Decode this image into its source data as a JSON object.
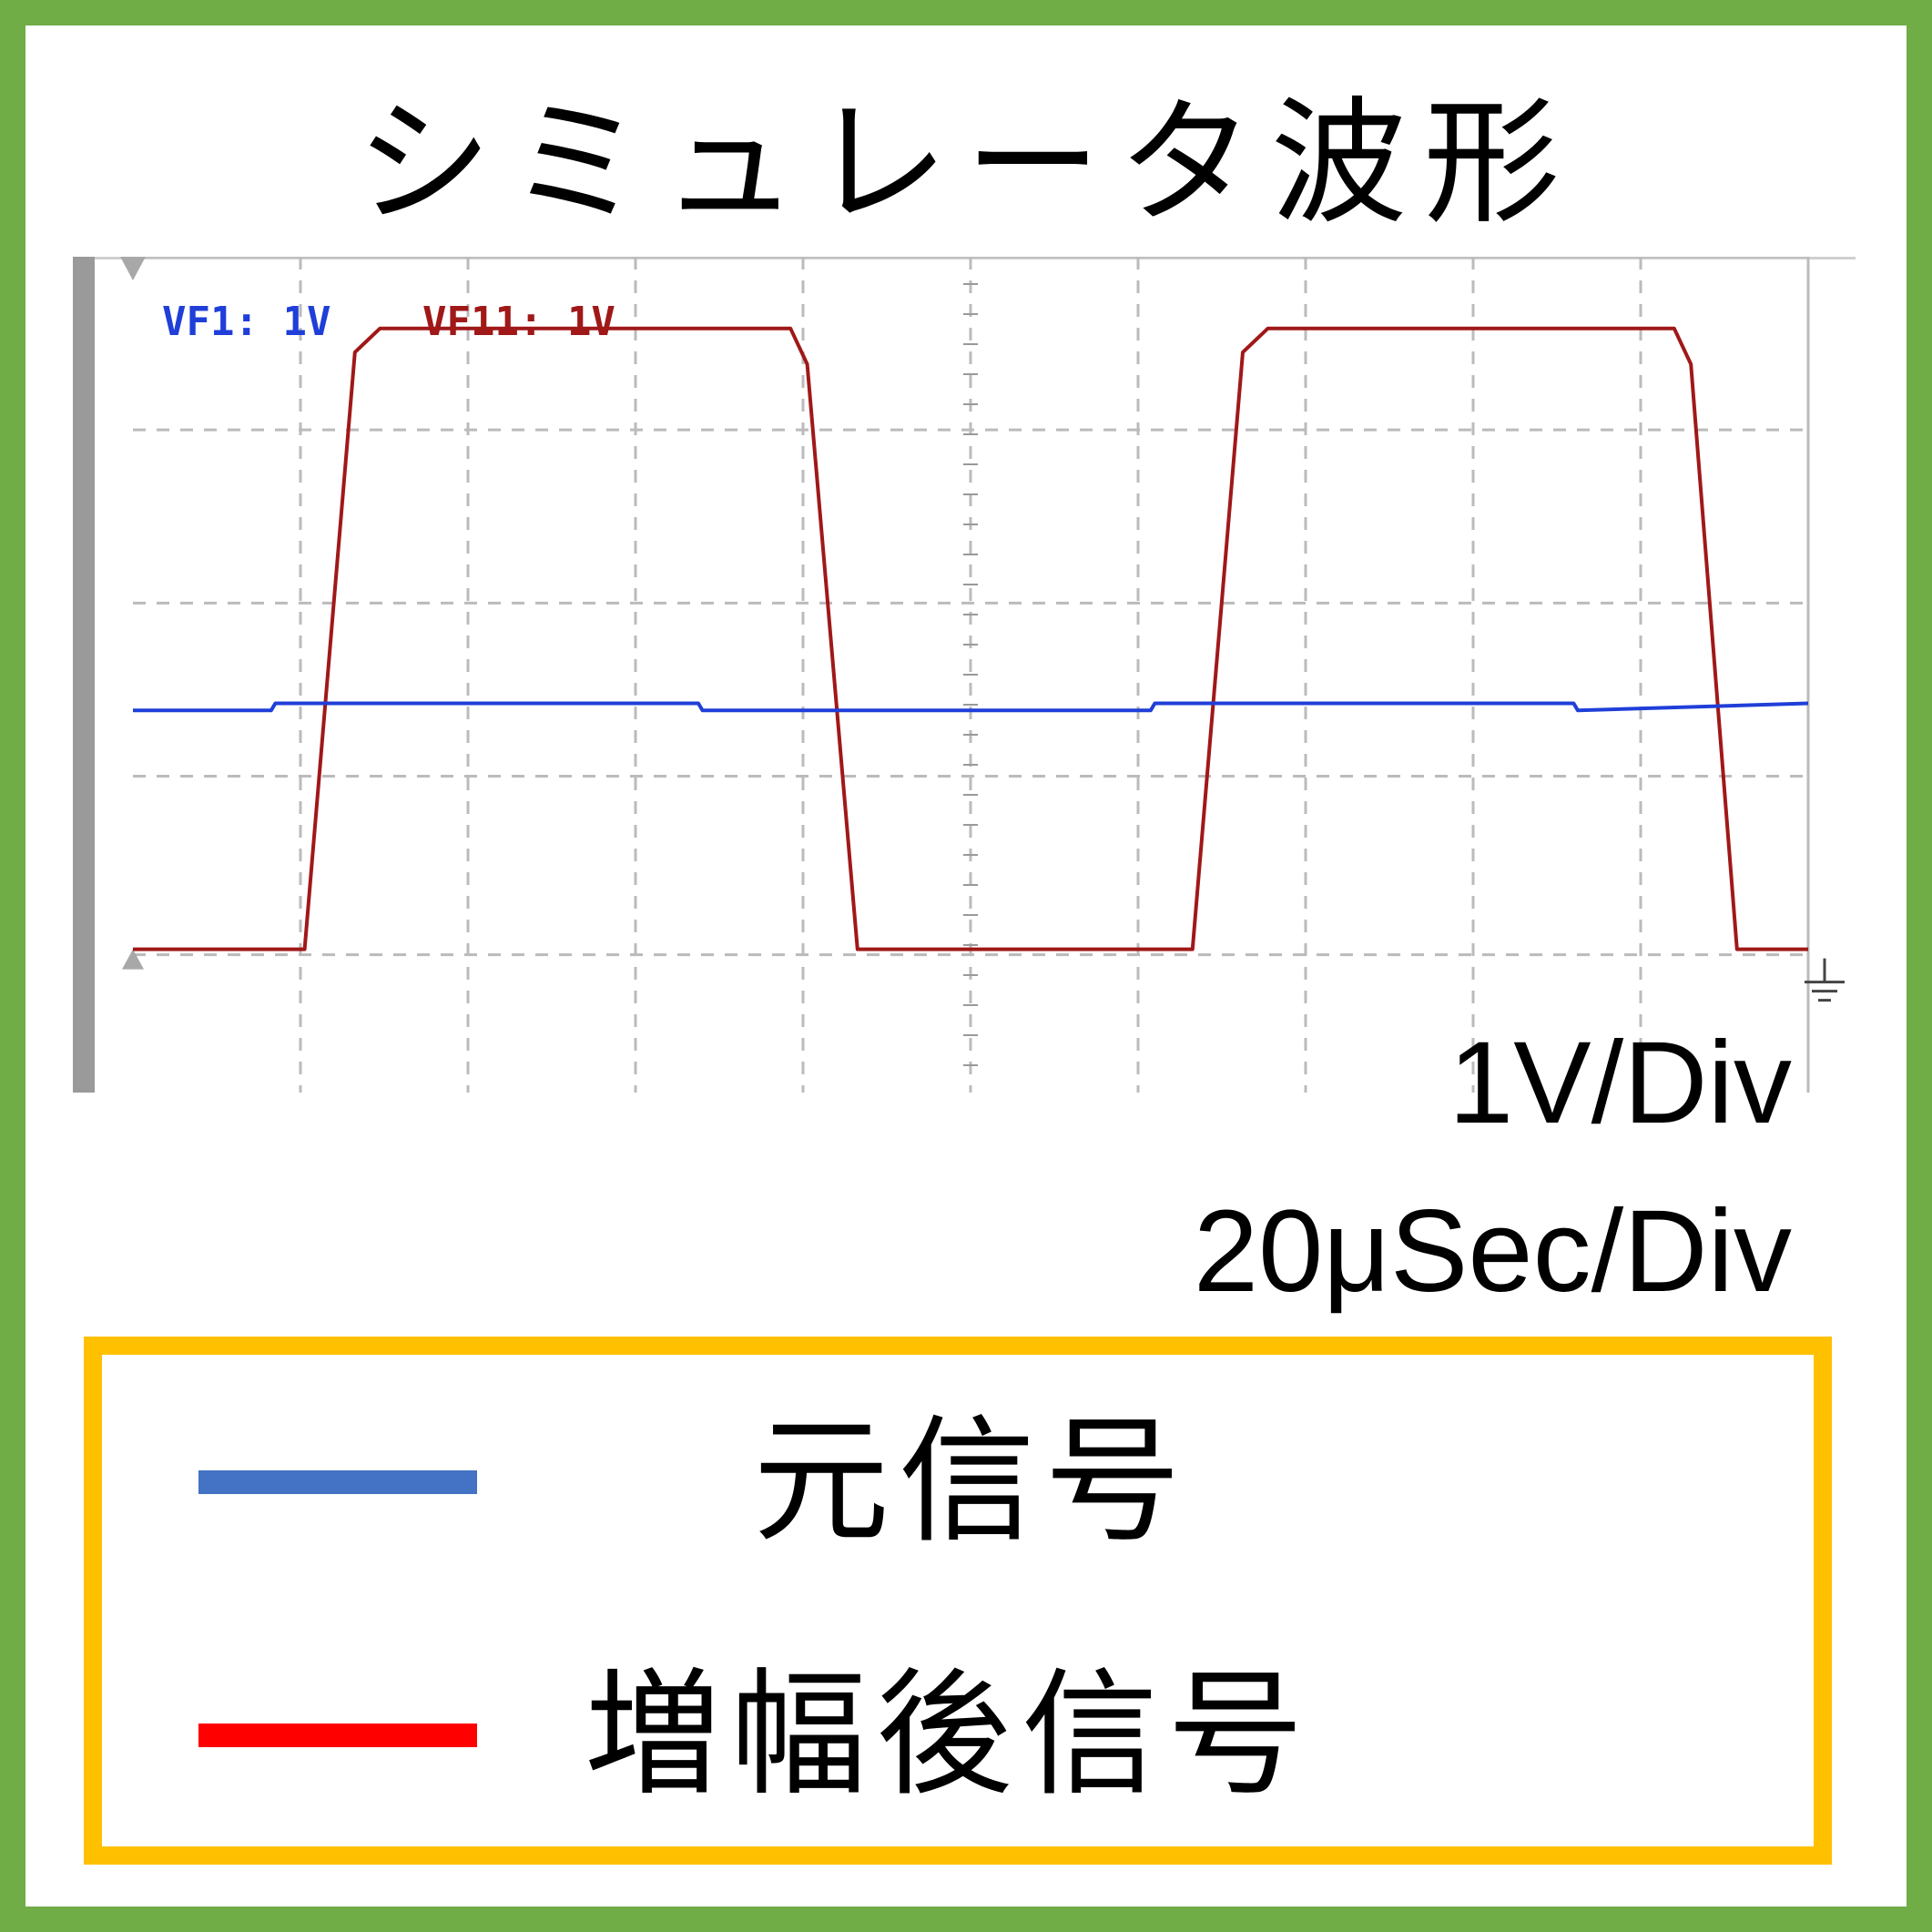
{
  "title": "シミュレータ波形",
  "scale": {
    "volts_per_div": "1V/Div",
    "time_per_div": "20μSec/Div"
  },
  "colors": {
    "frame": "#70ad47",
    "legend_border": "#ffc000",
    "legend_blue": "#4472c4",
    "legend_red": "#ff0000",
    "trace_blue": "#1f3fd8",
    "trace_red": "#a01818",
    "grid": "#bbbbbb"
  },
  "legend": [
    {
      "label": "元信号",
      "color": "#4472c4"
    },
    {
      "label": "増幅後信号",
      "color": "#ff0000"
    }
  ],
  "chart_data": {
    "type": "line",
    "title": "シミュレータ波形",
    "xlabel": "",
    "ylabel": "",
    "x_unit": "μs",
    "y_unit": "V",
    "xlim": [
      0,
      200
    ],
    "ylim": [
      -0.6,
      2.9
    ],
    "grid": true,
    "channel_labels": [
      "VF1: 1V",
      "VF11: 1V"
    ],
    "series": [
      {
        "name": "VF1: 1V",
        "color": "#1f3fd8",
        "x": [
          0,
          16.5,
          17,
          67.5,
          68,
          121.5,
          122,
          172,
          172.5,
          200
        ],
        "y": [
          1.0,
          1.0,
          1.03,
          1.03,
          1.0,
          1.0,
          1.03,
          1.03,
          1.0,
          1.03
        ]
      },
      {
        "name": "VF11: 1V",
        "color": "#a01818",
        "x": [
          0,
          20.5,
          26.5,
          29.5,
          78.5,
          80.5,
          86.5,
          126.5,
          132.5,
          135.5,
          184,
          186,
          191.5,
          200
        ],
        "y": [
          0.0,
          0.0,
          2.5,
          2.6,
          2.6,
          2.45,
          0.0,
          0.0,
          2.5,
          2.6,
          2.6,
          2.45,
          0.0,
          0.0
        ]
      }
    ]
  }
}
